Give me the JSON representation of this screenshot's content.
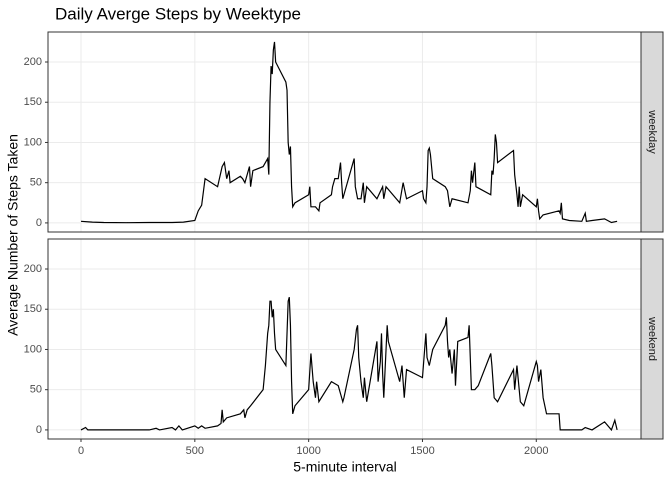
{
  "chart_data": {
    "type": "line",
    "title": "Daily Averge Steps by Weektype",
    "xlabel": "5-minute interval",
    "ylabel": "Average Number of Steps Taken",
    "xlim": [
      -145,
      2460
    ],
    "xticks": [
      0,
      500,
      1000,
      1500,
      2000
    ],
    "ylim": [
      -11.3,
      237.3
    ],
    "yticks": [
      0,
      50,
      100,
      150,
      200
    ],
    "grid": true,
    "color": "#000000",
    "panels": [
      {
        "label": "weekday",
        "x": [
          0,
          50,
          100,
          200,
          300,
          400,
          450,
          500,
          515,
          530,
          545,
          600,
          620,
          630,
          640,
          650,
          655,
          700,
          710,
          720,
          730,
          740,
          745,
          755,
          800,
          810,
          820,
          825,
          830,
          835,
          840,
          845,
          850,
          855,
          900,
          905,
          910,
          915,
          920,
          925,
          930,
          940,
          1000,
          1005,
          1010,
          1030,
          1045,
          1050,
          1100,
          1105,
          1115,
          1130,
          1140,
          1145,
          1150,
          1200,
          1205,
          1215,
          1230,
          1240,
          1245,
          1255,
          1300,
          1325,
          1330,
          1340,
          1400,
          1415,
          1430,
          1500,
          1505,
          1515,
          1520,
          1525,
          1530,
          1535,
          1545,
          1600,
          1610,
          1620,
          1630,
          1700,
          1710,
          1715,
          1720,
          1730,
          1735,
          1800,
          1805,
          1810,
          1815,
          1820,
          1825,
          1830,
          1900,
          1905,
          1915,
          1920,
          1925,
          1930,
          1940,
          2000,
          2005,
          2010,
          2015,
          2030,
          2100,
          2105,
          2110,
          2115,
          2145,
          2200,
          2215,
          2220,
          2245,
          2300,
          2330,
          2355
        ],
        "values": [
          2,
          1,
          0.5,
          0.3,
          0.5,
          0.5,
          1,
          3,
          15,
          22,
          55,
          45,
          70,
          75,
          55,
          65,
          50,
          58,
          55,
          50,
          60,
          70,
          45,
          65,
          70,
          75,
          80,
          60,
          150,
          195,
          185,
          215,
          225,
          200,
          175,
          165,
          100,
          85,
          95,
          45,
          20,
          25,
          35,
          45,
          20,
          20,
          15,
          25,
          35,
          45,
          55,
          55,
          75,
          50,
          30,
          80,
          45,
          30,
          30,
          50,
          25,
          45,
          30,
          45,
          30,
          45,
          25,
          50,
          30,
          40,
          30,
          25,
          45,
          90,
          93,
          85,
          55,
          45,
          40,
          20,
          30,
          25,
          40,
          65,
          50,
          75,
          45,
          35,
          65,
          60,
          80,
          110,
          100,
          75,
          90,
          60,
          35,
          20,
          45,
          20,
          35,
          20,
          30,
          15,
          5,
          10,
          15,
          12,
          25,
          5,
          3,
          2,
          12,
          2,
          3,
          5,
          0.5,
          2
        ]
      },
      {
        "label": "weekend",
        "x": [
          0,
          20,
          30,
          100,
          200,
          300,
          330,
          345,
          400,
          415,
          430,
          445,
          500,
          515,
          530,
          545,
          600,
          615,
          620,
          625,
          640,
          700,
          715,
          720,
          730,
          745,
          800,
          810,
          820,
          825,
          830,
          835,
          840,
          845,
          850,
          855,
          900,
          910,
          915,
          920,
          925,
          930,
          940,
          1000,
          1010,
          1020,
          1030,
          1035,
          1045,
          1100,
          1130,
          1145,
          1150,
          1155,
          1200,
          1210,
          1215,
          1220,
          1230,
          1240,
          1245,
          1255,
          1300,
          1305,
          1315,
          1320,
          1325,
          1330,
          1345,
          1350,
          1400,
          1410,
          1420,
          1430,
          1500,
          1515,
          1520,
          1530,
          1545,
          1600,
          1605,
          1610,
          1615,
          1620,
          1625,
          1630,
          1640,
          1645,
          1655,
          1700,
          1705,
          1715,
          1730,
          1745,
          1800,
          1805,
          1815,
          1830,
          1900,
          1905,
          1915,
          1920,
          1930,
          1945,
          2000,
          2005,
          2010,
          2020,
          2030,
          2045,
          2100,
          2105,
          2200,
          2215,
          2245,
          2300,
          2330,
          2345,
          2355
        ],
        "values": [
          0,
          3,
          0,
          0,
          0,
          0,
          2,
          0,
          3,
          0,
          5,
          0,
          5,
          2,
          5,
          2,
          5,
          8,
          25,
          10,
          15,
          20,
          25,
          15,
          25,
          30,
          50,
          80,
          120,
          130,
          160,
          160,
          140,
          150,
          120,
          100,
          80,
          160,
          165,
          130,
          60,
          20,
          30,
          50,
          95,
          60,
          40,
          60,
          35,
          60,
          55,
          40,
          35,
          40,
          100,
          125,
          130,
          90,
          60,
          40,
          65,
          35,
          110,
          60,
          85,
          120,
          70,
          40,
          130,
          110,
          60,
          80,
          40,
          75,
          65,
          120,
          90,
          80,
          100,
          130,
          140,
          110,
          90,
          100,
          85,
          70,
          100,
          55,
          110,
          115,
          130,
          50,
          50,
          55,
          95,
          80,
          40,
          35,
          75,
          50,
          80,
          65,
          35,
          30,
          85,
          80,
          60,
          75,
          40,
          20,
          20,
          0,
          0,
          3,
          0,
          10,
          0,
          12,
          0
        ]
      }
    ]
  }
}
